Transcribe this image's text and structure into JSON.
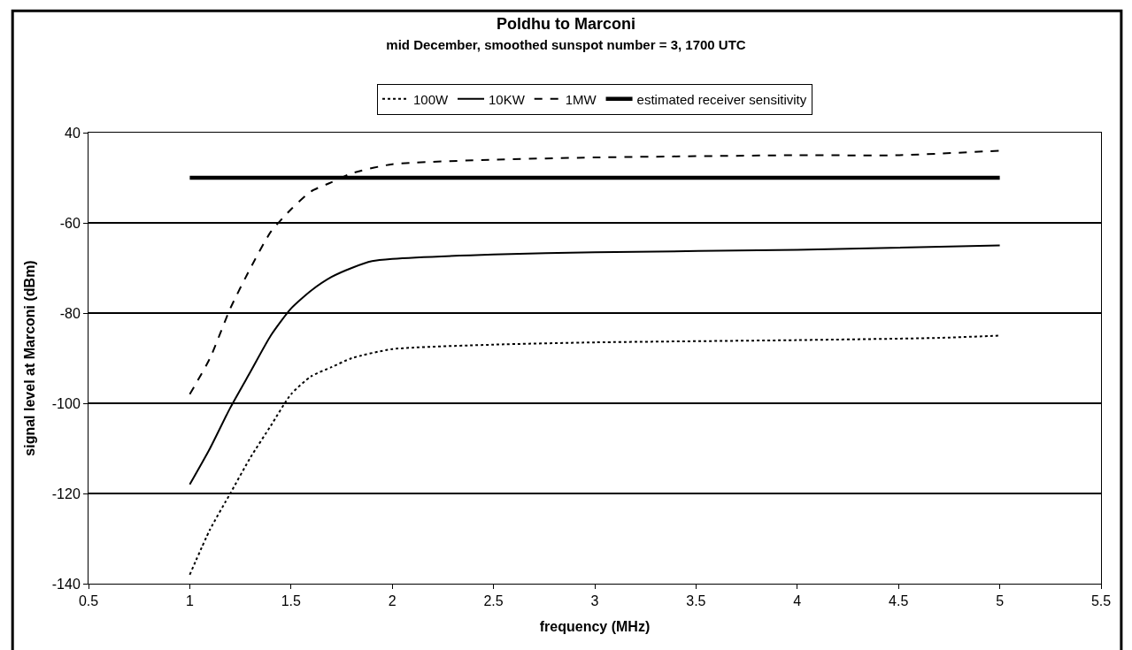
{
  "chart_data": {
    "type": "line",
    "title": "Poldhu to Marconi",
    "subtitle": "mid December, smoothed sunspot number = 3, 1700 UTC",
    "xlabel": "frequency (MHz)",
    "ylabel": "signal level at Marconi (dBm)",
    "xlim": [
      0.5,
      5.5
    ],
    "xticks": [
      0.5,
      1,
      1.5,
      2,
      2.5,
      3,
      3.5,
      4,
      4.5,
      5,
      5.5
    ],
    "ylim": [
      -140,
      -40
    ],
    "yticks": [
      {
        "value": -40,
        "label": "40"
      },
      -60,
      -80,
      -100,
      -120,
      -140
    ],
    "grid": "y",
    "legend": "top",
    "marker": "none",
    "series": [
      {
        "name": "100W",
        "color": "#000000",
        "line_style": "dotted",
        "x": [
          1,
          1.1,
          1.2,
          1.3,
          1.4,
          1.5,
          1.6,
          1.7,
          1.8,
          2,
          2.5,
          3,
          4,
          4.7,
          5
        ],
        "values": [
          -138,
          -128,
          -120,
          -112,
          -105,
          -98,
          -94,
          -92,
          -90,
          -88,
          -87,
          -86.5,
          -86,
          -85.5,
          -85
        ]
      },
      {
        "name": "10KW",
        "color": "#000000",
        "line_style": "solid",
        "x": [
          1,
          1.1,
          1.2,
          1.3,
          1.4,
          1.5,
          1.6,
          1.7,
          1.8,
          1.9,
          2,
          2.5,
          3,
          4,
          5
        ],
        "values": [
          -118,
          -110,
          -101,
          -93,
          -85,
          -79,
          -75,
          -72,
          -70,
          -68.5,
          -68,
          -67,
          -66.5,
          -66,
          -65
        ]
      },
      {
        "name": "1MW",
        "color": "#000000",
        "line_style": "dashed",
        "x": [
          1,
          1.1,
          1.2,
          1.3,
          1.4,
          1.5,
          1.6,
          1.7,
          1.8,
          2,
          2.5,
          3,
          4,
          4.5,
          5
        ],
        "values": [
          -98,
          -90,
          -79,
          -70,
          -62,
          -57,
          -53,
          -51,
          -49,
          -47,
          -46,
          -45.5,
          -45,
          -45,
          -44
        ]
      },
      {
        "name": "estimated receiver sensitivity",
        "color": "#000000",
        "line_style": "solid",
        "x": [
          1,
          5
        ],
        "values": [
          -50,
          -50
        ]
      }
    ]
  }
}
